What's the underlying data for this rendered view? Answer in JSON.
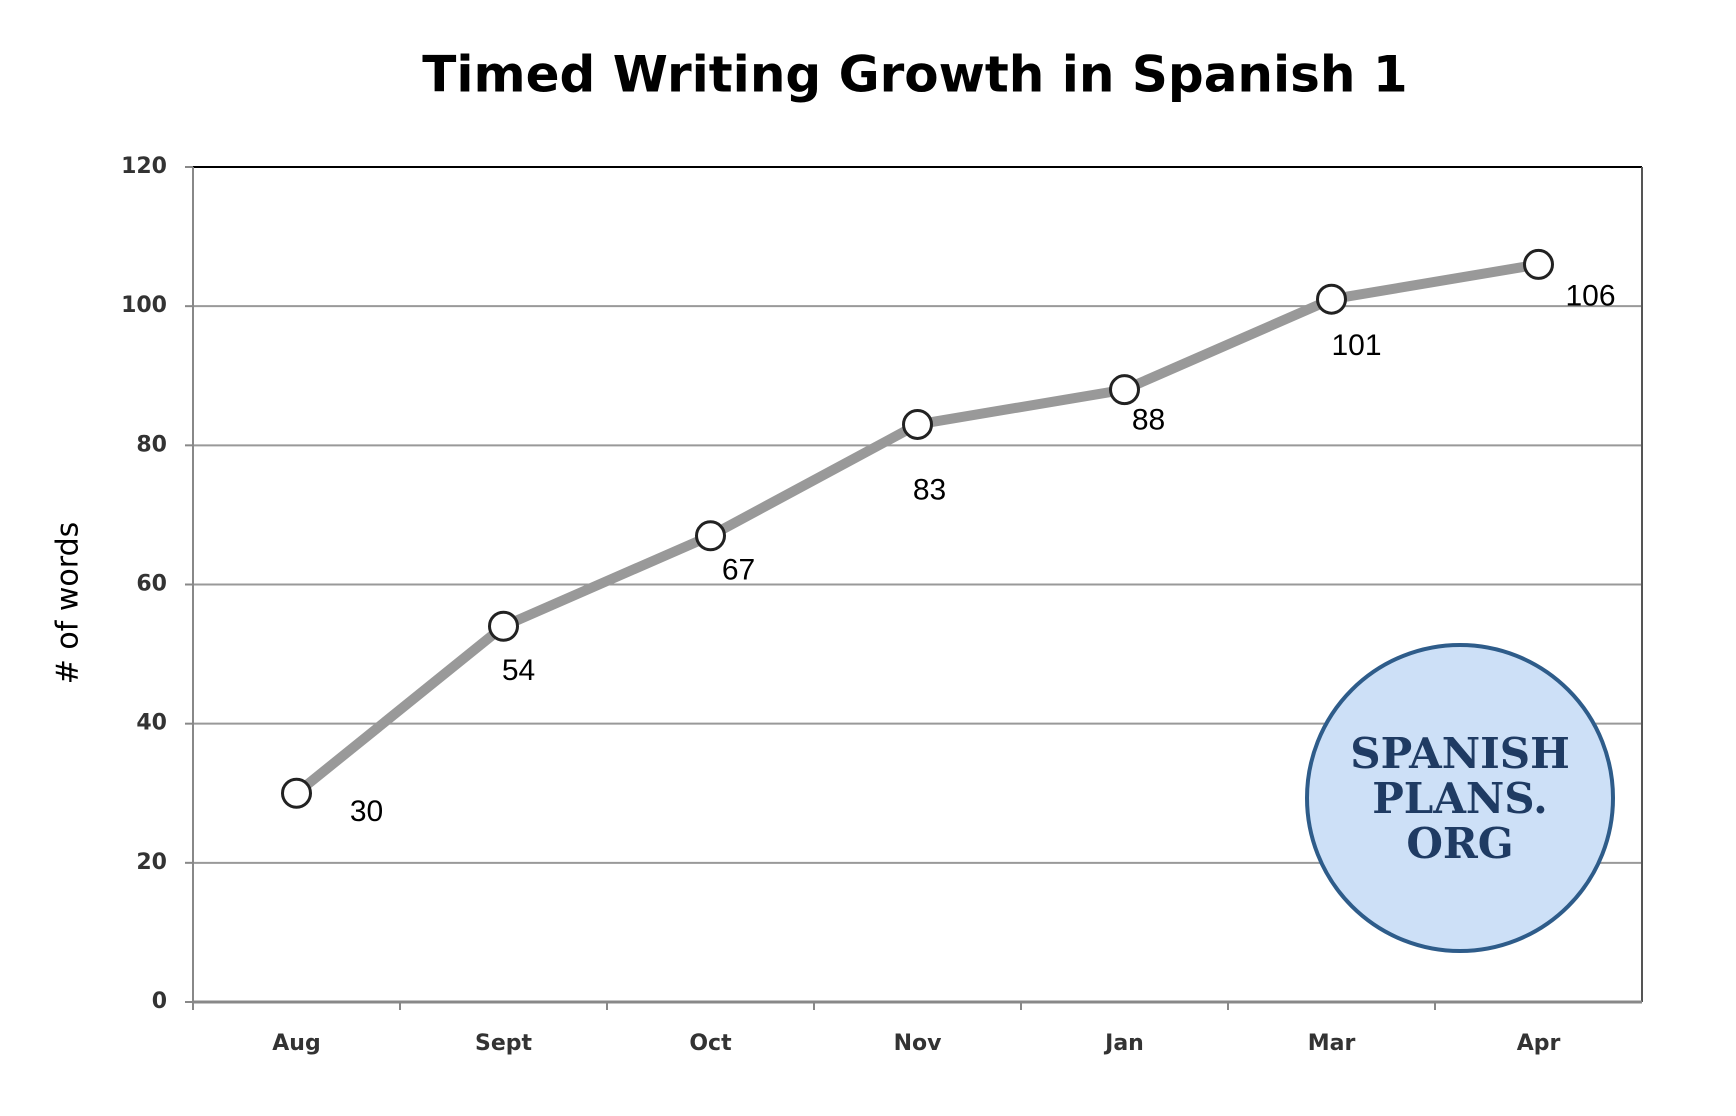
{
  "chart_data": {
    "type": "line",
    "title": "Timed Writing Growth in Spanish 1",
    "y_label": "# of words",
    "categories": [
      "Aug",
      "Sept",
      "Oct",
      "Nov",
      "Jan",
      "Mar",
      "Apr"
    ],
    "values": [
      30,
      54,
      67,
      83,
      88,
      101,
      106
    ],
    "color": "#999999",
    "ylim": [
      0,
      120
    ],
    "yticks": [
      0,
      20,
      40,
      60,
      80,
      100,
      120
    ],
    "grid": true
  },
  "logo": {
    "lines": [
      "SPANISH",
      "PLANS.",
      "ORG"
    ]
  }
}
